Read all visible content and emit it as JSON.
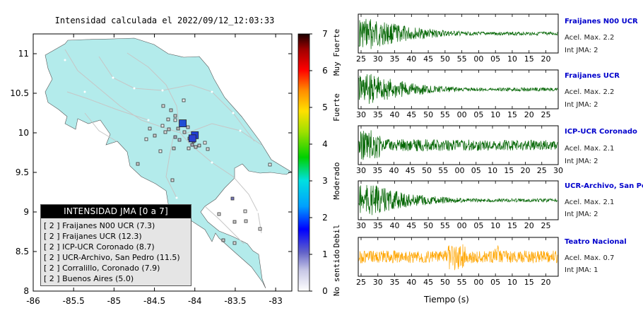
{
  "map": {
    "title": "Intensidad calculada el 2022/09/12_12:03:33",
    "x_ticks": [
      "-86",
      "-85.5",
      "-85",
      "-84.5",
      "-84",
      "-83.5",
      "-83"
    ],
    "y_ticks": [
      "11",
      "10.5",
      "10",
      "9.5",
      "9",
      "8.5",
      "8"
    ],
    "land_color": "#b3ebeb",
    "sea_color": "#ffffff",
    "major_markers": [
      {
        "lon": -84.15,
        "lat": 10.12,
        "color": "#1f4fd6"
      },
      {
        "lon": -84.0,
        "lat": 9.97,
        "color": "#1f3fd6"
      },
      {
        "lon": -84.03,
        "lat": 9.93,
        "color": "#2a3fd0"
      }
    ]
  },
  "colorbar": {
    "ticks": [
      "0",
      "1",
      "2",
      "3",
      "4",
      "5",
      "6",
      "7"
    ],
    "categories": [
      "No sentido",
      "Debil",
      "Moderado",
      "Fuerte",
      "Muy Fuerte"
    ]
  },
  "legend": {
    "title": "INTENSIDAD JMA [0 a 7]",
    "items": [
      "[ 2 ]  Fraijanes N00 UCR (7.3)",
      "[ 2 ]  Fraijanes UCR (12.3)",
      "[ 2 ]  ICP-UCR Coronado (8.7)",
      "[ 2 ]  UCR-Archivo, San Pedro (11.5)",
      "[ 2 ]  Corralillo, Coronado (7.9)",
      "[ 2 ]  Buenos Aires (5.0)"
    ]
  },
  "traces": [
    {
      "name": "Fraijanes N00 UCR",
      "acc": "Acel. Max. 2.2",
      "int": "Int JMA: 2",
      "color": "#006400",
      "ticks": [
        "25",
        "30",
        "35",
        "40",
        "45",
        "50",
        "55",
        "00",
        "05",
        "10",
        "15",
        "20"
      ]
    },
    {
      "name": "Fraijanes UCR",
      "acc": "Acel. Max. 2.2",
      "int": "Int JMA: 2",
      "color": "#006400",
      "ticks": [
        "30",
        "35",
        "40",
        "45",
        "50",
        "55",
        "00",
        "05",
        "10",
        "15",
        "20",
        "25"
      ]
    },
    {
      "name": "ICP-UCR Coronado",
      "acc": "Acel. Max. 2.1",
      "int": "Int JMA: 2",
      "color": "#006400",
      "ticks": [
        "30",
        "35",
        "40",
        "45",
        "50",
        "55",
        "00",
        "05",
        "10",
        "15",
        "20",
        "25",
        "30"
      ]
    },
    {
      "name": "UCR-Archivo, San Pedro",
      "acc": "Acel. Max. 2.1",
      "int": "Int JMA: 2",
      "color": "#006400",
      "ticks": [
        "30",
        "35",
        "40",
        "45",
        "50",
        "55",
        "00",
        "05",
        "10",
        "15",
        "20",
        "25"
      ]
    },
    {
      "name": "Teatro Nacional",
      "acc": "Acel. Max. 0.7",
      "int": "Int JMA: 1",
      "color": "#ffa500",
      "ticks": [
        "25",
        "30",
        "35",
        "40",
        "45",
        "50",
        "55",
        "00",
        "05",
        "10",
        "15",
        "20"
      ]
    }
  ],
  "time_axis_label": "Tiempo (s)"
}
